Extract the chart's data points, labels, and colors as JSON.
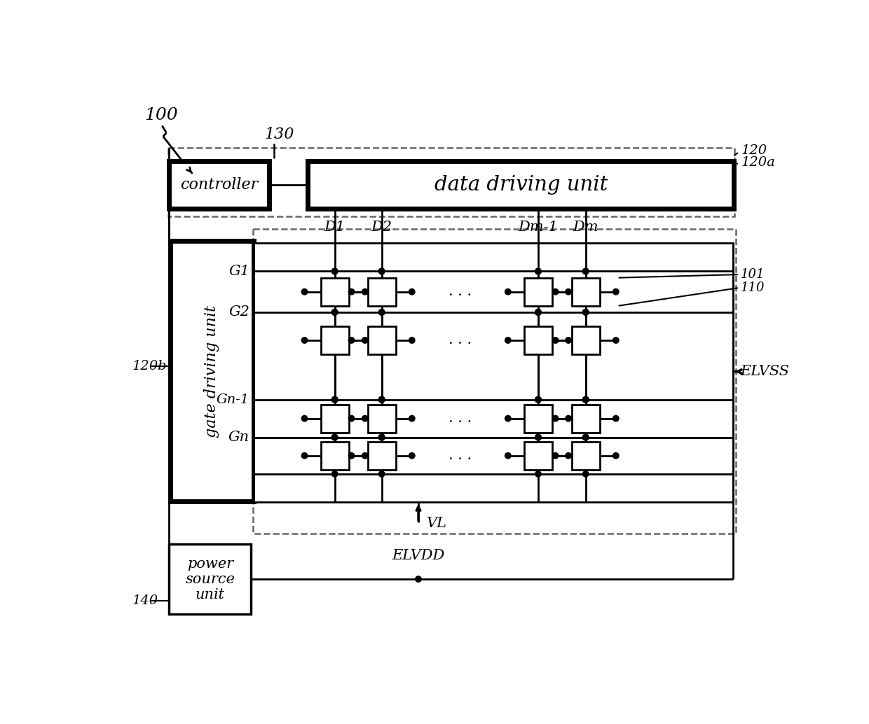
{
  "bg_color": "#ffffff",
  "lc": "#000000",
  "dc": "#666666",
  "fig_label": "100",
  "label_130": "130",
  "label_120": "120",
  "label_120a": "120a",
  "label_120b": "120b",
  "label_140": "140",
  "label_101": "101",
  "label_110": "110",
  "label_elvss": "ELVSS",
  "label_elvdd": "ELVDD",
  "label_vl": "VL",
  "controller_text": "controller",
  "ddu_text": "data driving unit",
  "gdu_text": "gate driving unit",
  "psu_text": "power\nsource\nunit"
}
